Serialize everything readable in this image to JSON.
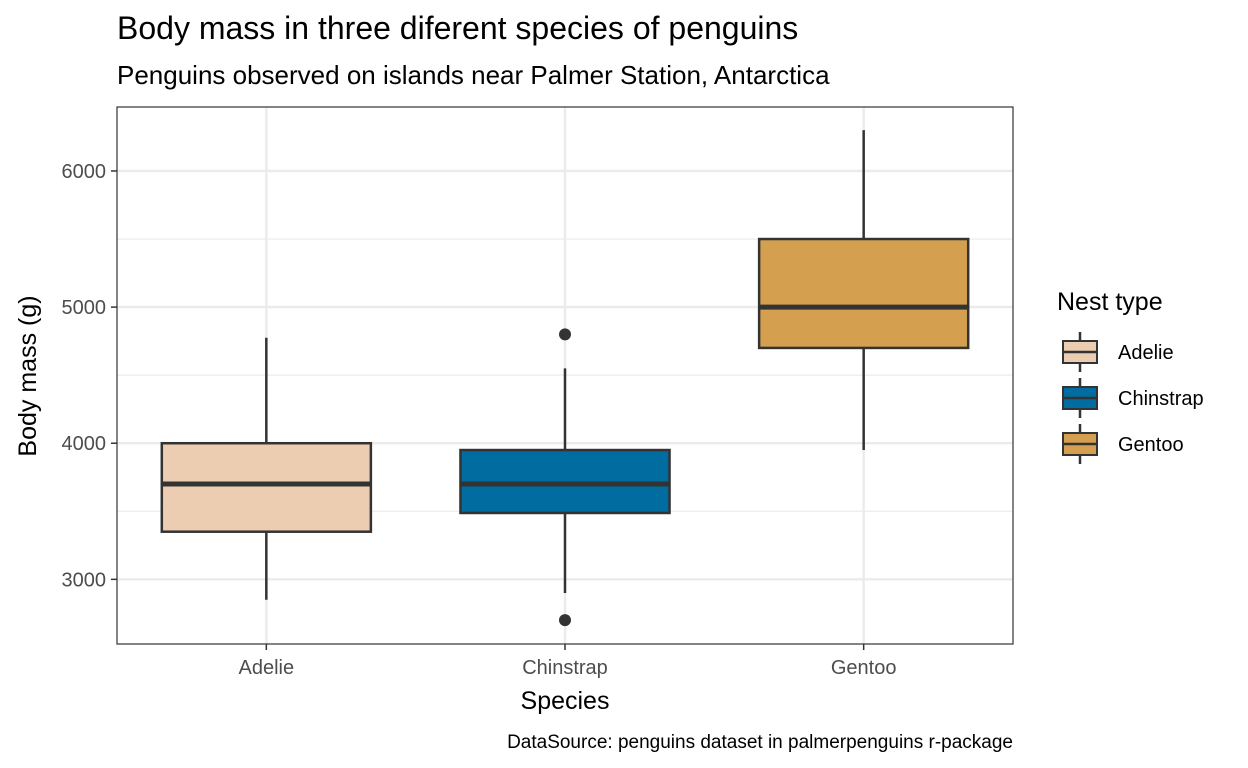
{
  "chart_data": {
    "type": "box",
    "title": "Body mass in three diferent species of penguins",
    "subtitle": "Penguins observed on islands near Palmer Station, Antarctica",
    "xlabel": "Species",
    "ylabel": "Body mass (g)",
    "caption": "DataSource: penguins dataset in palmerpenguins r-package",
    "categories": [
      "Adelie",
      "Chinstrap",
      "Gentoo"
    ],
    "ylim": [
      2525,
      6470
    ],
    "yticks": [
      3000,
      4000,
      5000,
      6000
    ],
    "grid": true,
    "legend": {
      "title": "Nest type",
      "position": "right",
      "entries": [
        "Adelie",
        "Chinstrap",
        "Gentoo"
      ]
    },
    "series": [
      {
        "name": "Adelie",
        "color": "#EDCDB1",
        "min": 2850,
        "q1": 3350,
        "median": 3700,
        "q3": 4000,
        "max": 4775,
        "outliers": []
      },
      {
        "name": "Chinstrap",
        "color": "#006C9F",
        "min": 2900,
        "q1": 3487.5,
        "median": 3700,
        "q3": 3950,
        "max": 4550,
        "outliers": [
          4800,
          2700
        ]
      },
      {
        "name": "Gentoo",
        "color": "#D49F4F",
        "min": 3950,
        "q1": 4700,
        "median": 5000,
        "q3": 5500,
        "max": 6300,
        "outliers": []
      }
    ],
    "colors": {
      "outline": "#333333",
      "grid": "#ebebeb",
      "panel_border": "#333333"
    }
  }
}
